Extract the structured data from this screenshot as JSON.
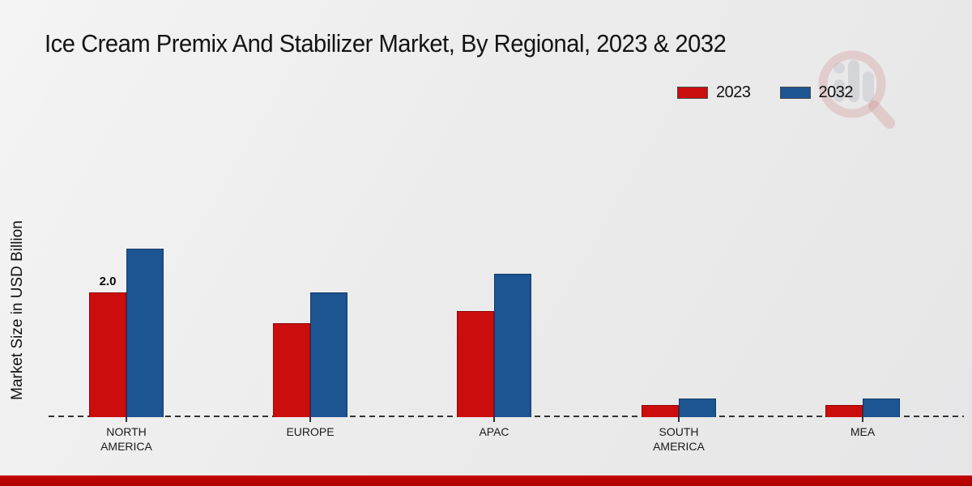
{
  "title": "Ice Cream Premix And Stabilizer Market, By Regional, 2023 & 2032",
  "y_axis_label": "Market Size in USD Billion",
  "colors": {
    "series_2023": "#cc0d0d",
    "series_2032": "#1d5492",
    "footer_band": "#bb0303",
    "background": "#ececec",
    "baseline": "#333333"
  },
  "legend": {
    "position": "top-right",
    "items": [
      {
        "label": "2023"
      },
      {
        "label": "2032"
      }
    ]
  },
  "chart_data": {
    "type": "bar",
    "categories": [
      "NORTH AMERICA",
      "EUROPE",
      "APAC",
      "SOUTH AMERICA",
      "MEA"
    ],
    "series": [
      {
        "name": "2023",
        "color": "#cc0d0d",
        "values": [
          2.0,
          1.5,
          1.7,
          0.2,
          0.2
        ]
      },
      {
        "name": "2032",
        "color": "#1d5492",
        "values": [
          2.7,
          2.0,
          2.3,
          0.3,
          0.3
        ]
      }
    ],
    "title": "Ice Cream Premix And Stabilizer Market, By Regional, 2023 & 2032",
    "xlabel": "",
    "ylabel": "Market Size in USD Billion",
    "ylim": [
      0,
      3
    ],
    "grid": false,
    "y_ticks_visible": false,
    "baseline_style": "dashed",
    "legend_position": "top-right",
    "annotations": [
      {
        "text": "2.0",
        "series": "2023",
        "category": "NORTH AMERICA"
      }
    ]
  }
}
